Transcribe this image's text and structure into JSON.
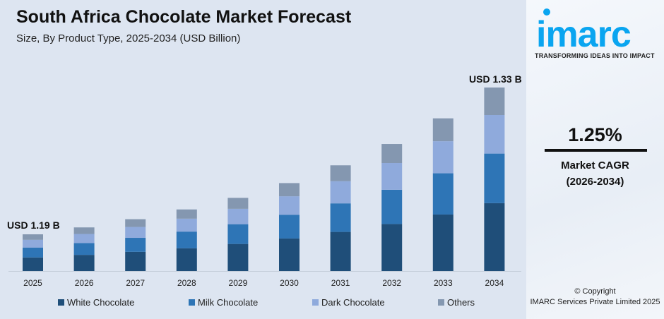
{
  "header": {
    "title": "South Africa Chocolate Market Forecast",
    "subtitle": "Size, By Product Type, 2025-2034 (USD Billion)"
  },
  "chart_data": {
    "type": "bar",
    "stacked": true,
    "categories": [
      "2025",
      "2026",
      "2027",
      "2028",
      "2029",
      "2030",
      "2031",
      "2032",
      "2033",
      "2034"
    ],
    "totals": [
      1.19,
      1.205,
      1.22,
      1.235,
      1.25,
      1.266,
      1.282,
      1.298,
      1.314,
      1.33
    ],
    "series": [
      {
        "name": "White Chocolate",
        "color": "#1f4e79",
        "share": 0.37
      },
      {
        "name": "Milk Chocolate",
        "color": "#2e75b6",
        "share": 0.27
      },
      {
        "name": "Dark Chocolate",
        "color": "#8faadc",
        "share": 0.21
      },
      {
        "name": "Others",
        "color": "#8497b0",
        "share": 0.15
      }
    ],
    "annotations": {
      "first": "USD 1.19 B",
      "last": "USD 1.33 B"
    },
    "legend": "bottom",
    "grid": false
  },
  "brand": {
    "logo_text": "imarc",
    "tagline": "TRANSFORMING IDEAS INTO IMPACT",
    "color": "#0aa5f0"
  },
  "kpi": {
    "value": "1.25%",
    "label": "Market CAGR",
    "period": "(2026-2034)"
  },
  "footer": {
    "copyright": "© Copyright",
    "company": "IMARC Services Private Limited 2025"
  }
}
